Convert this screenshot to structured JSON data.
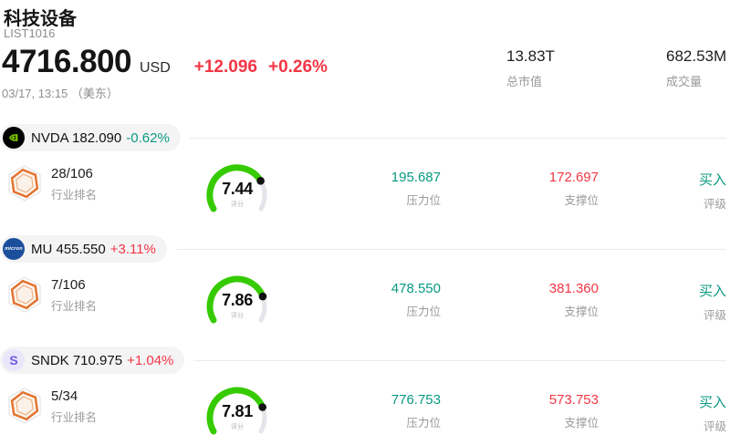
{
  "page": {
    "title": "科技设备",
    "subtitle": "LIST1016",
    "price": "4716.800",
    "currency": "USD",
    "change": "+12.096",
    "change_pct": "+0.26%",
    "timestamp": "03/17, 13:15 （美东）",
    "stats": [
      {
        "value": "13.83T",
        "label": "总市值"
      },
      {
        "value": "682.53M",
        "label": "成交量"
      }
    ]
  },
  "colors": {
    "up_red": "#f23645",
    "down_teal": "#089981",
    "gauge_green": "#35cb00",
    "gauge_rest": "#e4e4ea",
    "chip_bg": "#f4f4f5",
    "nvidia_green": "#76b900"
  },
  "rows": [
    {
      "ticker_price": "NVDA 182.090",
      "change_pct": "-0.62%",
      "direction": "down",
      "logo_text": "",
      "rank": "28/106",
      "rank_label": "行业排名",
      "score": 7.44,
      "score_label": "评分",
      "resistance": {
        "value": "195.687",
        "label": "压力位"
      },
      "support": {
        "value": "172.697",
        "label": "支撑位"
      },
      "rating": {
        "value": "买入",
        "label": "评级"
      }
    },
    {
      "ticker_price": "MU 455.550",
      "change_pct": "+3.11%",
      "direction": "up",
      "logo_text": "micron",
      "rank": "7/106",
      "rank_label": "行业排名",
      "score": 7.86,
      "score_label": "评分",
      "resistance": {
        "value": "478.550",
        "label": "压力位"
      },
      "support": {
        "value": "381.360",
        "label": "支撑位"
      },
      "rating": {
        "value": "买入",
        "label": "评级"
      }
    },
    {
      "ticker_price": "SNDK 710.975",
      "change_pct": "+1.04%",
      "direction": "up",
      "logo_text": "S",
      "rank": "5/34",
      "rank_label": "行业排名",
      "score": 7.81,
      "score_label": "评分",
      "resistance": {
        "value": "776.753",
        "label": "压力位"
      },
      "support": {
        "value": "573.753",
        "label": "支撑位"
      },
      "rating": {
        "value": "买入",
        "label": "评级"
      }
    }
  ]
}
